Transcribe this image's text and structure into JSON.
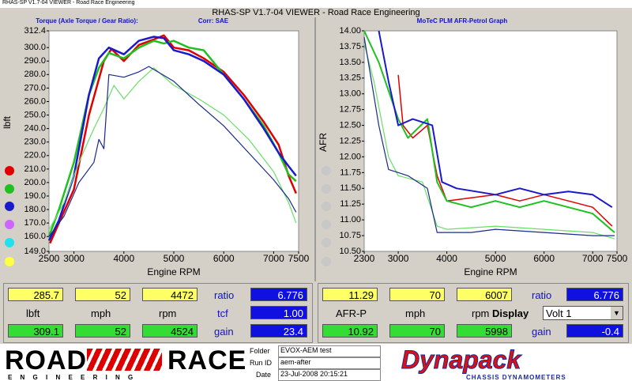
{
  "window": {
    "caption": "RHAS-SP V1.7-04  VIEWER - Road Race Engineering",
    "title": "RHAS-SP V1.7-04  VIEWER - Road Race Engineering"
  },
  "chart_data": [
    {
      "type": "line",
      "title": "Torque (Axle Torque / Gear Ratio):",
      "subtitle": "Corr: SAE",
      "ylabel": "lbft",
      "xlabel": "Engine RPM",
      "grid": false,
      "xlim": [
        2500,
        7500
      ],
      "xticks": [
        2500,
        3000,
        4000,
        5000,
        6000,
        7000,
        7500
      ],
      "ylim": [
        149,
        312.4
      ],
      "yticks": [
        {
          "value": 149,
          "label": "149.0"
        },
        {
          "value": 160,
          "label": "160.0"
        },
        {
          "value": 170,
          "label": "170.0"
        },
        {
          "value": 180,
          "label": "180.0"
        },
        {
          "value": 190,
          "label": "190.0"
        },
        {
          "value": 200,
          "label": "200.0"
        },
        {
          "value": 210,
          "label": "210.0"
        },
        {
          "value": 220,
          "label": "220.0"
        },
        {
          "value": 230,
          "label": "230.0"
        },
        {
          "value": 240,
          "label": "240.0"
        },
        {
          "value": 250,
          "label": "250.0"
        },
        {
          "value": 260,
          "label": "260.0"
        },
        {
          "value": 270,
          "label": "270.0"
        },
        {
          "value": 280,
          "label": "280.0"
        },
        {
          "value": 290,
          "label": "290.0"
        },
        {
          "value": 300,
          "label": "300.0"
        },
        312.4
      ],
      "series": [
        {
          "color": "#e00000",
          "width": 2.5,
          "x": [
            2520,
            2700,
            3000,
            3300,
            3600,
            3750,
            4000,
            4300,
            4600,
            4800,
            5000,
            5300,
            5600,
            6000,
            6400,
            6800,
            7100,
            7300,
            7450
          ],
          "values": [
            155,
            170,
            195,
            250,
            290,
            299,
            290,
            302,
            306,
            309,
            300,
            298,
            292,
            282,
            265,
            245,
            228,
            205,
            192
          ]
        },
        {
          "color": "#20c020",
          "width": 2.5,
          "x": [
            2500,
            2700,
            3000,
            3300,
            3500,
            3700,
            4000,
            4300,
            4600,
            4800,
            5000,
            5300,
            5600,
            6000,
            6400,
            6800,
            7100,
            7300,
            7450
          ],
          "values": [
            160,
            180,
            215,
            265,
            285,
            296,
            292,
            300,
            305,
            303,
            305,
            300,
            298,
            280,
            262,
            242,
            222,
            206,
            201
          ]
        },
        {
          "color": "#1a1acc",
          "width": 2.5,
          "x": [
            2500,
            2700,
            3000,
            3300,
            3500,
            3700,
            4000,
            4300,
            4600,
            4800,
            5000,
            5300,
            5600,
            6000,
            6400,
            6800,
            7100,
            7300,
            7450
          ],
          "values": [
            157,
            172,
            205,
            265,
            292,
            300,
            295,
            305,
            308,
            307,
            298,
            295,
            290,
            280,
            262,
            240,
            222,
            212,
            205
          ]
        },
        {
          "color": "#66e066",
          "width": 1.2,
          "x": [
            2500,
            2800,
            3100,
            3400,
            3600,
            3800,
            4000,
            4300,
            4600,
            5000,
            5500,
            6000,
            6500,
            7000,
            7300,
            7450
          ],
          "values": [
            165,
            185,
            215,
            240,
            255,
            272,
            262,
            275,
            285,
            272,
            262,
            250,
            232,
            208,
            185,
            170
          ]
        },
        {
          "color": "#1a2a8a",
          "width": 1.2,
          "x": [
            2500,
            2800,
            3100,
            3400,
            3500,
            3600,
            3700,
            4000,
            4300,
            4500,
            5000,
            5500,
            6000,
            6500,
            7000,
            7300,
            7450
          ],
          "values": [
            160,
            175,
            200,
            215,
            232,
            225,
            280,
            278,
            282,
            286,
            275,
            258,
            242,
            222,
            202,
            188,
            178
          ]
        }
      ]
    },
    {
      "type": "line",
      "title": "MoTeC PLM AFR-Petrol Graph",
      "ylabel": "AFR",
      "xlabel": "Engine RPM",
      "grid": false,
      "xlim": [
        2300,
        7500
      ],
      "xticks": [
        2300,
        3000,
        4000,
        5000,
        6000,
        7000,
        7500
      ],
      "ylim": [
        10.5,
        14
      ],
      "yticks": [
        {
          "value": 10.5,
          "label": "10.50"
        },
        10.75,
        {
          "value": 11,
          "label": "11.00"
        },
        11.25,
        {
          "value": 11.5,
          "label": "11.50"
        },
        11.75,
        {
          "value": 12,
          "label": "12.00"
        },
        12.25,
        {
          "value": 12.5,
          "label": "12.50"
        },
        12.75,
        {
          "value": 13,
          "label": "13.00"
        },
        13.25,
        {
          "value": 13.5,
          "label": "13.50"
        },
        13.75,
        {
          "value": 14,
          "label": "14.00"
        }
      ],
      "series": [
        {
          "color": "#e00000",
          "width": 1.5,
          "x": [
            3000,
            3100,
            3300,
            3600,
            3800,
            4000,
            4500,
            5000,
            5500,
            6000,
            6500,
            7000,
            7400
          ],
          "values": [
            13.3,
            12.5,
            12.3,
            12.5,
            11.7,
            11.3,
            11.35,
            11.4,
            11.3,
            11.4,
            11.3,
            11.2,
            10.9
          ]
        },
        {
          "color": "#20c020",
          "width": 2,
          "x": [
            2300,
            2600,
            3000,
            3200,
            3600,
            3800,
            4000,
            4500,
            5000,
            5500,
            6000,
            6500,
            7000,
            7450
          ],
          "values": [
            14,
            13.5,
            12.6,
            12.3,
            12.6,
            11.6,
            11.3,
            11.2,
            11.3,
            11.2,
            11.3,
            11.2,
            11.1,
            10.8
          ]
        },
        {
          "color": "#1a1acc",
          "width": 2,
          "x": [
            2600,
            2800,
            3000,
            3300,
            3700,
            3900,
            4200,
            5000,
            5500,
            6000,
            6500,
            7000,
            7400
          ],
          "values": [
            14,
            13.2,
            12.5,
            12.6,
            12.5,
            11.6,
            11.5,
            11.4,
            11.5,
            11.4,
            11.45,
            11.4,
            11.2
          ]
        },
        {
          "color": "#66e066",
          "width": 1.2,
          "x": [
            2300,
            2500,
            2800,
            3000,
            3500,
            3800,
            4000,
            5000,
            6000,
            7000,
            7450
          ],
          "values": [
            13.8,
            13.2,
            12,
            11.7,
            11.6,
            10.9,
            10.85,
            10.9,
            10.85,
            10.8,
            10.7
          ]
        },
        {
          "color": "#1a2a8a",
          "width": 1.2,
          "x": [
            2300,
            2600,
            2800,
            3200,
            3600,
            3800,
            4500,
            5000,
            6000,
            7000,
            7450
          ],
          "values": [
            13.9,
            12.5,
            11.8,
            11.7,
            11.5,
            10.8,
            10.8,
            10.85,
            10.8,
            10.75,
            10.75
          ]
        }
      ]
    }
  ],
  "panels": [
    {
      "top": [
        "285.7",
        "52",
        "4472"
      ],
      "labels": [
        "lbft",
        "mph",
        "rpm"
      ],
      "bottom": [
        "309.1",
        "52",
        "4524"
      ],
      "side_labels": [
        "ratio",
        "tcf",
        "gain"
      ],
      "side_values": [
        "6.776",
        "1.00",
        "23.4"
      ]
    },
    {
      "top": [
        "11.29",
        "70",
        "6007"
      ],
      "labels": [
        "AFR-P",
        "mph",
        "rpm"
      ],
      "bottom": [
        "10.92",
        "70",
        "5998"
      ],
      "side_labels": [
        "ratio",
        "Display",
        "gain"
      ],
      "side_values": [
        "6.776",
        "Volt 1",
        "-0.4"
      ]
    }
  ],
  "footer": {
    "logo_left": [
      "ROAD",
      "RACE"
    ],
    "logo_left_sub": "E N G I N E E R I N G",
    "fields": [
      {
        "label": "Folder",
        "value": "EVOX-AEM test"
      },
      {
        "label": "Run ID",
        "value": "aem-after"
      },
      {
        "label": "Date",
        "value": "23-Jul-2008  20:15:21"
      }
    ],
    "logo_right": "Dynapack",
    "logo_right_sub": "CHASSIS DYNAMOMETERS"
  }
}
